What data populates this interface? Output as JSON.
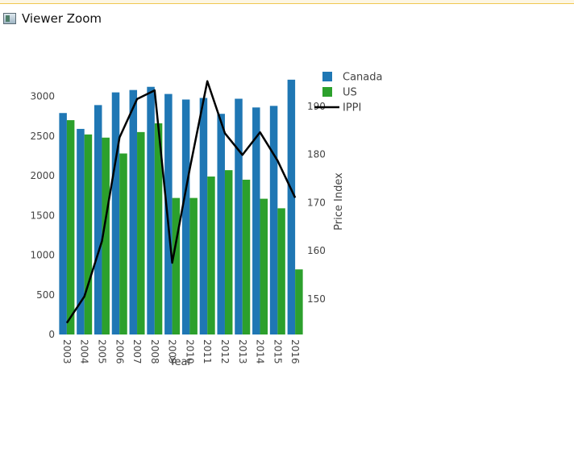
{
  "window": {
    "title": "Viewer Zoom"
  },
  "chart_data": {
    "type": "bar",
    "title": "",
    "xlabel": "Year",
    "ylabel": "",
    "y2label": "Price Index",
    "categories": [
      "2003",
      "2004",
      "2005",
      "2006",
      "2007",
      "2008",
      "2009",
      "2010",
      "2011",
      "2012",
      "2013",
      "2014",
      "2015",
      "2016"
    ],
    "series": [
      {
        "name": "Canada",
        "type": "bar",
        "axis": "y",
        "color": "#1f77b4",
        "values": [
          2790,
          2590,
          2890,
          3050,
          3080,
          3120,
          3030,
          2960,
          2980,
          2780,
          2970,
          2860,
          2880,
          3210
        ]
      },
      {
        "name": "US",
        "type": "bar",
        "axis": "y",
        "color": "#2ca02c",
        "values": [
          2700,
          2520,
          2480,
          2280,
          2550,
          2660,
          1720,
          1720,
          1990,
          2070,
          1950,
          1710,
          1590,
          820
        ]
      },
      {
        "name": "IPPI",
        "type": "line",
        "axis": "y2",
        "color": "#000000",
        "values": [
          145,
          150.5,
          162,
          183.5,
          191.5,
          193.3,
          157.5,
          177,
          195.2,
          184.4,
          179.9,
          184.6,
          178.7,
          171
        ]
      }
    ],
    "ylim": [
      0,
      3300
    ],
    "y2lim": [
      142.6,
      197
    ],
    "y_ticks": [
      "0",
      "500",
      "1000",
      "1500",
      "2000",
      "2500",
      "3000"
    ],
    "y2_ticks": [
      "150",
      "160",
      "170",
      "180",
      "190"
    ],
    "legend_position": "top-right",
    "grid": false
  }
}
